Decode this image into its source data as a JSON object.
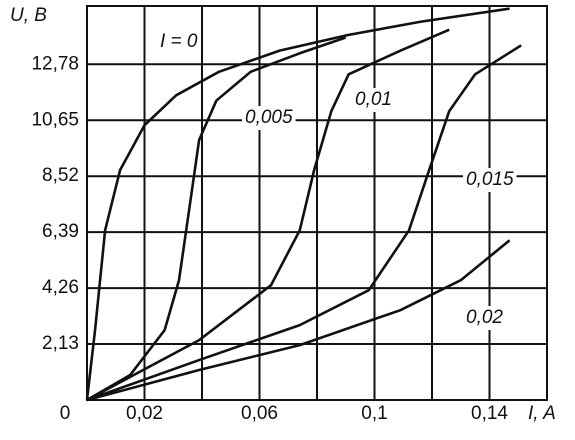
{
  "chart_data": {
    "type": "line",
    "y_label": "U, B",
    "x_label": "I, A",
    "xlim": [
      0,
      0.16
    ],
    "ylim": [
      0,
      15
    ],
    "xticks": [
      {
        "value": 0,
        "label": "0"
      },
      {
        "value": 0.02,
        "label": "0,02"
      },
      {
        "value": 0.04,
        "label": null
      },
      {
        "value": 0.06,
        "label": "0,06"
      },
      {
        "value": 0.08,
        "label": null
      },
      {
        "value": 0.1,
        "label": "0,1"
      },
      {
        "value": 0.12,
        "label": null
      },
      {
        "value": 0.14,
        "label": "0,14"
      }
    ],
    "yticks": [
      {
        "value": 2.13,
        "label": "2,13"
      },
      {
        "value": 4.26,
        "label": "4,26"
      },
      {
        "value": 6.39,
        "label": "6,39"
      },
      {
        "value": 8.52,
        "label": "8,52"
      },
      {
        "value": 10.65,
        "label": "10,65"
      },
      {
        "value": 12.78,
        "label": "12,78"
      }
    ],
    "grid": true,
    "series": [
      {
        "name": "I = 0",
        "color": "#111111",
        "x": [
          0,
          0.0028,
          0.0063,
          0.0115,
          0.02,
          0.031,
          0.046,
          0.067,
          0.091,
          0.116,
          0.147
        ],
        "values": [
          0,
          2.66,
          6.46,
          8.75,
          10.46,
          11.6,
          12.5,
          13.3,
          13.9,
          14.4,
          14.9
        ]
      },
      {
        "name": "0,005",
        "color": "#111111",
        "x": [
          0,
          0.015,
          0.027,
          0.032,
          0.036,
          0.039,
          0.045,
          0.057,
          0.074,
          0.09
        ],
        "values": [
          0,
          0.95,
          2.66,
          4.56,
          7.6,
          9.9,
          11.4,
          12.5,
          13.2,
          13.8
        ]
      },
      {
        "name": "0,01",
        "color": "#111111",
        "x": [
          0,
          0.039,
          0.064,
          0.074,
          0.079,
          0.085,
          0.091,
          0.109,
          0.126
        ],
        "values": [
          0,
          2.28,
          4.37,
          6.46,
          8.75,
          11.0,
          12.4,
          13.3,
          14.1
        ]
      },
      {
        "name": "0,015",
        "color": "#111111",
        "x": [
          0,
          0.039,
          0.074,
          0.098,
          0.112,
          0.119,
          0.126,
          0.135,
          0.151
        ],
        "values": [
          0,
          1.52,
          2.85,
          4.18,
          6.46,
          8.75,
          11.0,
          12.4,
          13.5
        ]
      },
      {
        "name": "0,02",
        "color": "#111111",
        "x": [
          0,
          0.039,
          0.074,
          0.109,
          0.13,
          0.147
        ],
        "values": [
          0,
          1.14,
          2.09,
          3.42,
          4.56,
          6.08
        ]
      }
    ]
  }
}
